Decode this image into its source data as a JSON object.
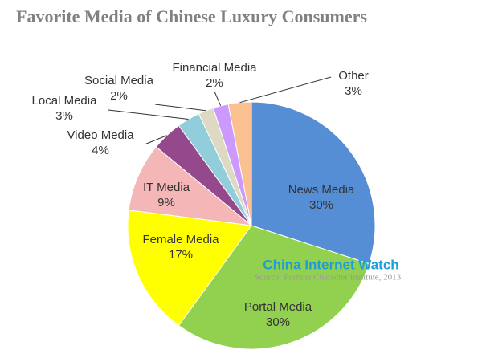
{
  "chart_data": {
    "type": "pie",
    "title": "Favorite  Media of Chinese Luxury Consumers",
    "categories": [
      "News Media",
      "Portal Media",
      "Female Media",
      "IT Media",
      "Video Media",
      "Local Media",
      "Social Media",
      "Financial Media",
      "Other"
    ],
    "values": [
      30,
      30,
      17,
      9,
      4,
      3,
      2,
      2,
      3
    ],
    "value_labels": [
      "30%",
      "30%",
      "17%",
      "9%",
      "4%",
      "3%",
      "2%",
      "2%",
      "3%"
    ],
    "colors": [
      "#558ed5",
      "#92d050",
      "#ffff00",
      "#f4b6b6",
      "#93498c",
      "#92cddc",
      "#ddd9c3",
      "#cc99ff",
      "#fac090"
    ],
    "watermark": "China Internet Watch",
    "source": "Source: Fortune Character Institute, 2013"
  }
}
